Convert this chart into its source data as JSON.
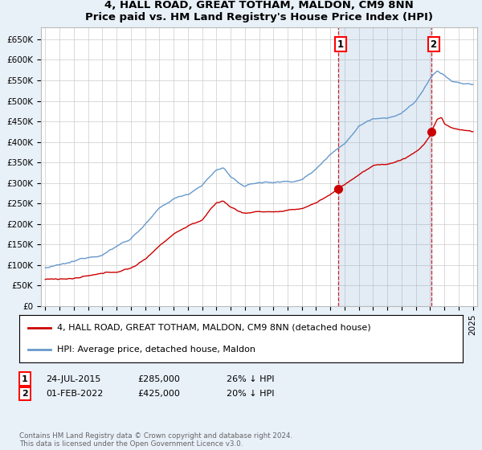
{
  "title1": "4, HALL ROAD, GREAT TOTHAM, MALDON, CM9 8NN",
  "title2": "Price paid vs. HM Land Registry's House Price Index (HPI)",
  "ylabel_ticks": [
    "£0",
    "£50K",
    "£100K",
    "£150K",
    "£200K",
    "£250K",
    "£300K",
    "£350K",
    "£400K",
    "£450K",
    "£500K",
    "£550K",
    "£600K",
    "£650K"
  ],
  "ytick_vals": [
    0,
    50000,
    100000,
    150000,
    200000,
    250000,
    300000,
    350000,
    400000,
    450000,
    500000,
    550000,
    600000,
    650000
  ],
  "ylim": [
    0,
    680000
  ],
  "xlim_start": 1994.7,
  "xlim_end": 2025.3,
  "xtick_years": [
    1995,
    1996,
    1997,
    1998,
    1999,
    2000,
    2001,
    2002,
    2003,
    2004,
    2005,
    2006,
    2007,
    2008,
    2009,
    2010,
    2011,
    2012,
    2013,
    2014,
    2015,
    2016,
    2017,
    2018,
    2019,
    2020,
    2021,
    2022,
    2023,
    2024,
    2025
  ],
  "purchase1_date": 2015.56,
  "purchase1_price": 285000,
  "purchase2_date": 2022.08,
  "purchase2_price": 425000,
  "legend_line1": "4, HALL ROAD, GREAT TOTHAM, MALDON, CM9 8NN (detached house)",
  "legend_line2": "HPI: Average price, detached house, Maldon",
  "footnote": "Contains HM Land Registry data © Crown copyright and database right 2024.\nThis data is licensed under the Open Government Licence v3.0.",
  "hpi_color": "#6699cc",
  "hpi_fill_color": "#ddeeff",
  "price_color": "#cc0000",
  "bg_color": "#e8f0f8",
  "plot_bg": "#ffffff",
  "grid_color": "#cccccc",
  "title_fontsize": 9.5,
  "subtitle_fontsize": 9,
  "tick_fontsize": 7.5,
  "legend_fontsize": 8,
  "annot_fontsize": 8
}
